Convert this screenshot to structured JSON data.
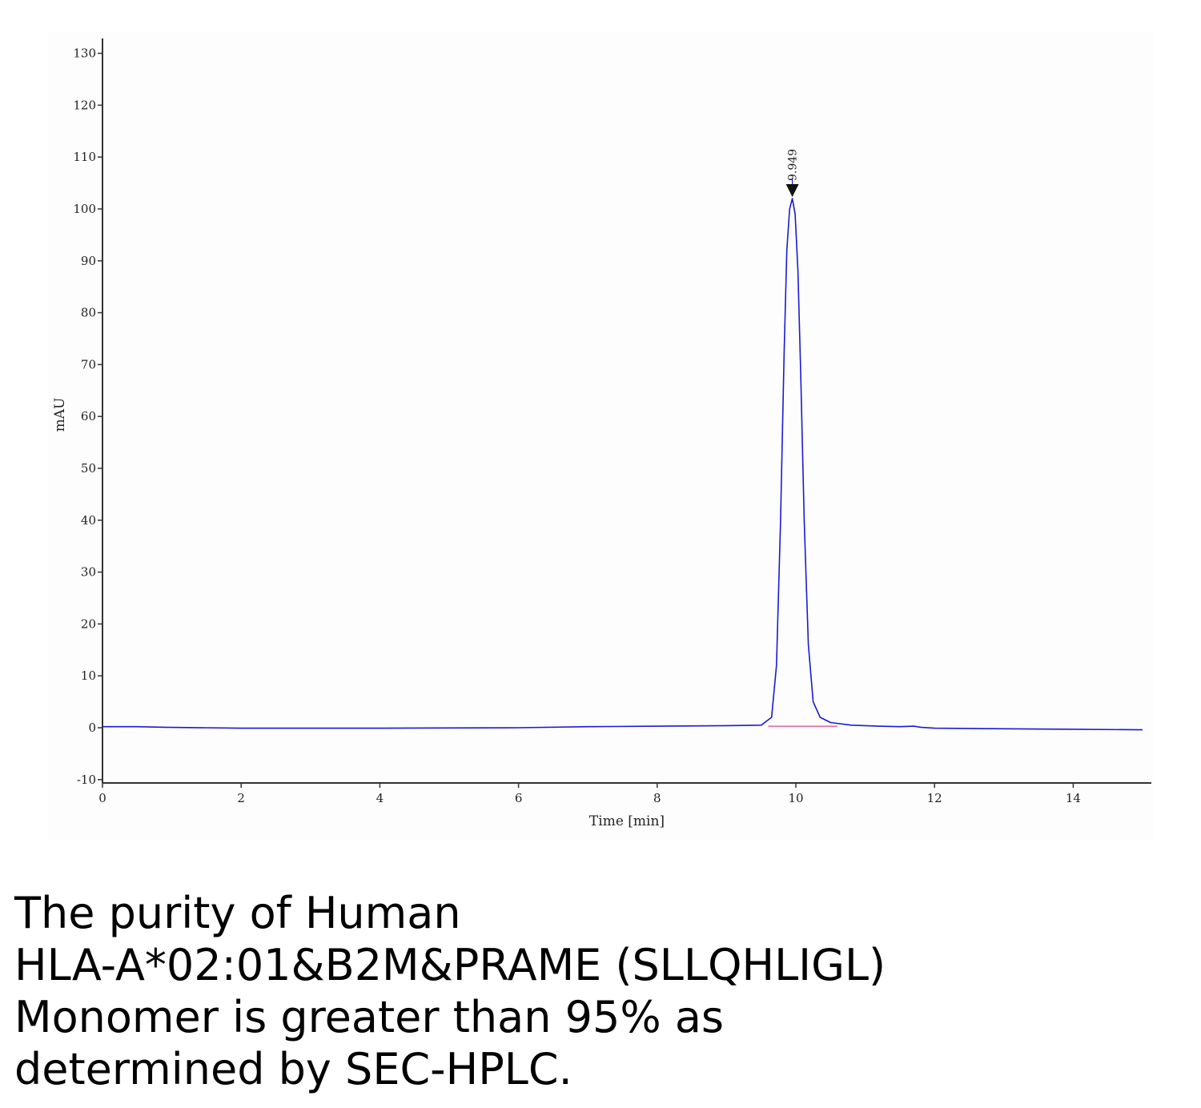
{
  "chart_data": {
    "type": "line",
    "xlabel": "Time [min]",
    "ylabel": "mAU",
    "xlim": [
      0,
      15.1
    ],
    "ylim": [
      -10,
      130
    ],
    "x_ticks": [
      0,
      2,
      4,
      6,
      8,
      10,
      12,
      14
    ],
    "y_ticks": [
      -10,
      0,
      10,
      20,
      30,
      40,
      50,
      60,
      70,
      80,
      90,
      100,
      110,
      120,
      130
    ],
    "grid": false,
    "legend": "none",
    "series": [
      {
        "color": "#1a1ad6",
        "x": [
          0,
          0.5,
          0.9,
          2,
          4,
          6,
          7,
          8,
          9,
          9.5,
          9.65,
          9.72,
          9.78,
          9.83,
          9.87,
          9.91,
          9.949,
          9.99,
          10.03,
          10.07,
          10.12,
          10.18,
          10.25,
          10.35,
          10.5,
          10.8,
          11.2,
          11.5,
          11.7,
          11.8,
          12,
          13,
          14,
          15
        ],
        "y": [
          0.2,
          0.2,
          0.1,
          -0.1,
          -0.1,
          0.0,
          0.2,
          0.3,
          0.4,
          0.5,
          2.0,
          12,
          40,
          72,
          92,
          100,
          102,
          99,
          88,
          68,
          40,
          16,
          5,
          2,
          1.0,
          0.5,
          0.3,
          0.2,
          0.3,
          0.1,
          -0.1,
          -0.2,
          -0.3,
          -0.4
        ]
      },
      {
        "color": "#e0478a",
        "x": [
          9.6,
          10.6
        ],
        "y": [
          0.3,
          0.3
        ]
      }
    ],
    "annotations": [
      {
        "x": 9.949,
        "y": 102,
        "text": "9.949",
        "marker": "triangle-down"
      }
    ]
  },
  "caption": {
    "lines": [
      "The purity of Human",
      "HLA-A*02:01&B2M&PRAME (SLLQHLIGL)",
      "Monomer is greater than 95% as",
      "determined by SEC-HPLC."
    ]
  }
}
